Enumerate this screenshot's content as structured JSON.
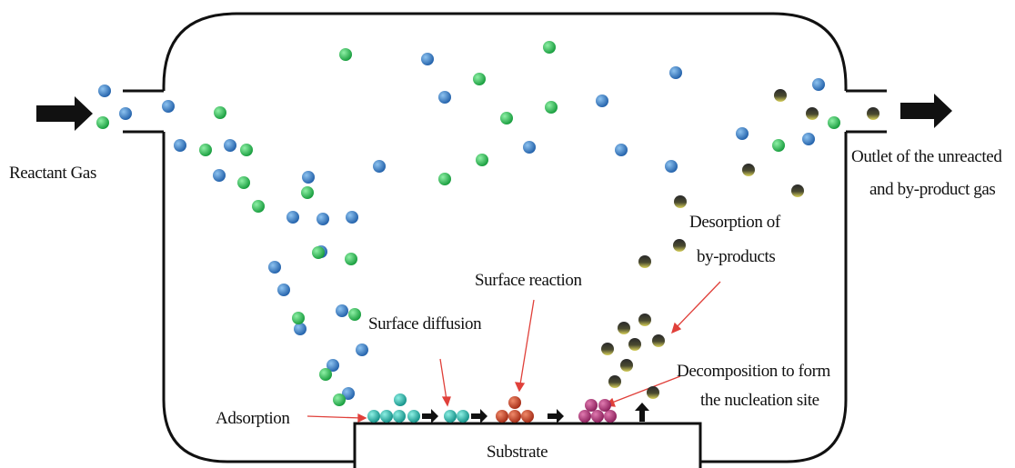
{
  "labels": {
    "reactant_gas": "Reactant Gas",
    "outlet": [
      "Outlet of the unreacted",
      "and by-product gas"
    ],
    "desorption": [
      "Desorption of",
      "by-products"
    ],
    "surface_reaction": "Surface reaction",
    "surface_diffusion": "Surface diffusion",
    "decomposition": [
      "Decomposition to form",
      "the nucleation site"
    ],
    "adsorption": "Adsorption",
    "substrate": "Substrate"
  }
}
